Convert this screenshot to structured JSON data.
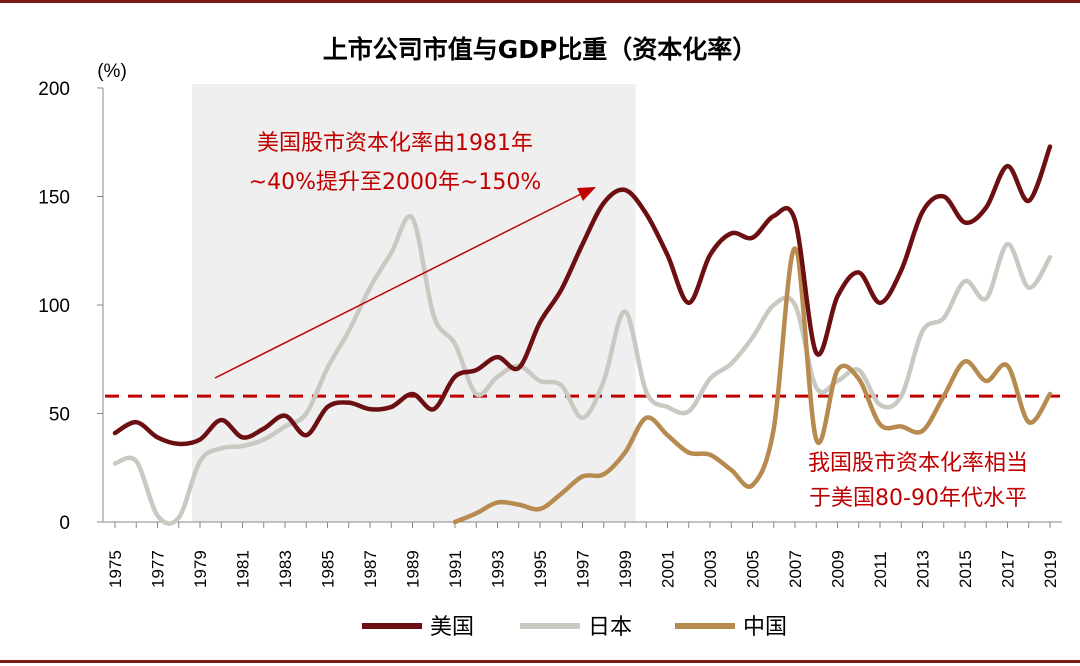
{
  "chart_data": {
    "type": "line",
    "title": "上市公司市值与GDP比重（资本化率）",
    "ylabel": "(%)",
    "ylim": [
      0,
      200
    ],
    "yticks": [
      0,
      50,
      100,
      150,
      200
    ],
    "xlim": [
      1975,
      2019
    ],
    "xticks": [
      "1975",
      "1977",
      "1979",
      "1981",
      "1983",
      "1985",
      "1987",
      "1989",
      "1991",
      "1993",
      "1995",
      "1997",
      "1999",
      "2001",
      "2003",
      "2005",
      "2007",
      "2009",
      "2011",
      "2013",
      "2015",
      "2017",
      "2019"
    ],
    "shaded_region": [
      1979,
      1999.5
    ],
    "reference_line": 58,
    "series": [
      {
        "name": "美国",
        "color": "#6b0f12",
        "x": [
          1975,
          1976,
          1977,
          1978,
          1979,
          1980,
          1981,
          1982,
          1983,
          1984,
          1985,
          1986,
          1987,
          1988,
          1989,
          1990,
          1991,
          1992,
          1993,
          1994,
          1995,
          1996,
          1997,
          1998,
          1999,
          2000,
          2001,
          2002,
          2003,
          2004,
          2005,
          2006,
          2007,
          2008,
          2009,
          2010,
          2011,
          2012,
          2013,
          2014,
          2015,
          2016,
          2017,
          2018,
          2019
        ],
        "values": [
          41,
          46,
          39,
          36,
          38,
          47,
          39,
          43,
          49,
          40,
          53,
          55,
          52,
          53,
          59,
          52,
          67,
          70,
          76,
          71,
          92,
          107,
          128,
          147,
          153,
          142,
          123,
          101,
          123,
          133,
          131,
          141,
          139,
          78,
          104,
          115,
          101,
          116,
          143,
          150,
          138,
          145,
          164,
          148,
          173
        ]
      },
      {
        "name": "日本",
        "color": "#c9c9c2",
        "x": [
          1975,
          1976,
          1977,
          1978,
          1979,
          1980,
          1981,
          1982,
          1983,
          1984,
          1985,
          1986,
          1987,
          1988,
          1989,
          1990,
          1991,
          1992,
          1993,
          1994,
          1995,
          1996,
          1997,
          1998,
          1999,
          2000,
          2001,
          2002,
          2003,
          2004,
          2005,
          2006,
          2007,
          2008,
          2009,
          2010,
          2011,
          2012,
          2013,
          2014,
          2015,
          2016,
          2017,
          2018,
          2019
        ],
        "values": [
          27,
          28,
          3,
          2,
          28,
          34,
          35,
          38,
          44,
          50,
          71,
          88,
          108,
          124,
          140,
          95,
          82,
          59,
          67,
          72,
          65,
          63,
          48,
          65,
          97,
          60,
          53,
          51,
          66,
          73,
          85,
          100,
          100,
          62,
          65,
          70,
          54,
          58,
          88,
          94,
          111,
          103,
          128,
          108,
          122
        ]
      },
      {
        "name": "中国",
        "color": "#b78a4f",
        "x": [
          1991,
          1992,
          1993,
          1994,
          1995,
          1996,
          1997,
          1998,
          1999,
          2000,
          2001,
          2002,
          2003,
          2004,
          2005,
          2006,
          2007,
          2008,
          2009,
          2010,
          2011,
          2012,
          2013,
          2014,
          2015,
          2016,
          2017,
          2018,
          2019
        ],
        "values": [
          0,
          4,
          9,
          8,
          6,
          13,
          21,
          22,
          32,
          48,
          40,
          32,
          31,
          24,
          17,
          43,
          126,
          38,
          70,
          66,
          45,
          44,
          42,
          58,
          74,
          65,
          72,
          46,
          59
        ]
      }
    ],
    "annotations": [
      {
        "lines": [
          "美国股市资本化率由1981年",
          "~40%提升至2000年~150%"
        ]
      },
      {
        "lines": [
          "我国股市资本化率相当",
          "于美国80-90年代水平"
        ]
      }
    ],
    "legend": "bottom"
  }
}
